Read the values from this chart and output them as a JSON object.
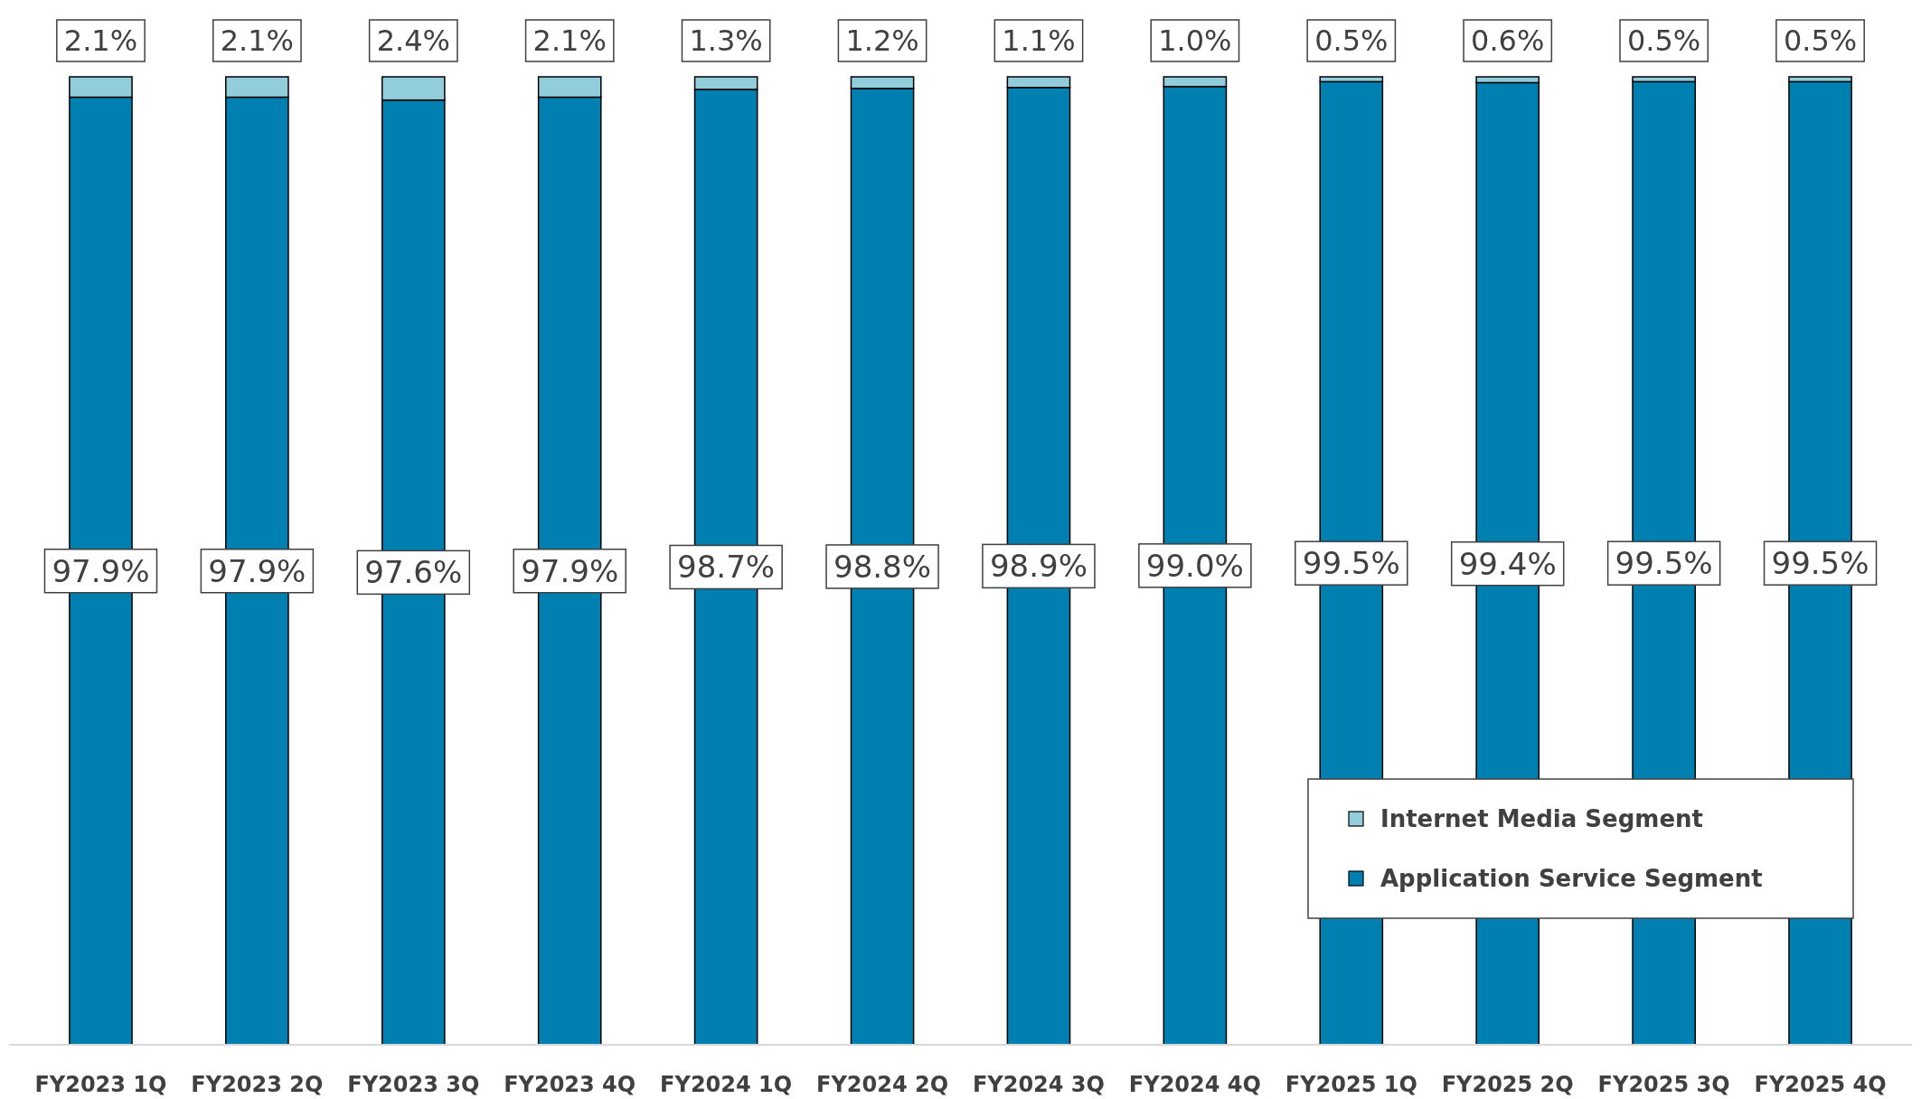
{
  "chart_data": {
    "type": "bar",
    "stacked": true,
    "legend": "bottom right",
    "tick_labels": "x",
    "categories": [
      "FY2023 1Q",
      "FY2023 2Q",
      "FY2023 3Q",
      "FY2023 4Q",
      "FY2024 1Q",
      "FY2024 2Q",
      "FY2024 3Q",
      "FY2024 4Q",
      "FY2025 1Q",
      "FY2025 2Q",
      "FY2025 3Q",
      "FY2025 4Q"
    ],
    "series": [
      {
        "name": "Application Service Segment",
        "color": "#0080b1",
        "values": [
          97.9,
          97.9,
          97.6,
          97.9,
          98.7,
          98.8,
          98.9,
          99.0,
          99.5,
          99.4,
          99.5,
          99.5
        ],
        "value_labels": [
          "97.9%",
          "97.9%",
          "97.6%",
          "97.9%",
          "98.7%",
          "98.8%",
          "98.9%",
          "99.0%",
          "99.5%",
          "99.4%",
          "99.5%",
          "99.5%"
        ]
      },
      {
        "name": "Internet Media Segment",
        "color": "#92cddc",
        "values": [
          2.1,
          2.1,
          2.4,
          2.1,
          1.3,
          1.2,
          1.1,
          1.0,
          0.5,
          0.6,
          0.5,
          0.5
        ],
        "value_labels": [
          "2.1%",
          "2.1%",
          "2.4%",
          "2.1%",
          "1.3%",
          "1.2%",
          "1.1%",
          "1.0%",
          "0.5%",
          "0.6%",
          "0.5%",
          "0.5%"
        ]
      }
    ]
  }
}
